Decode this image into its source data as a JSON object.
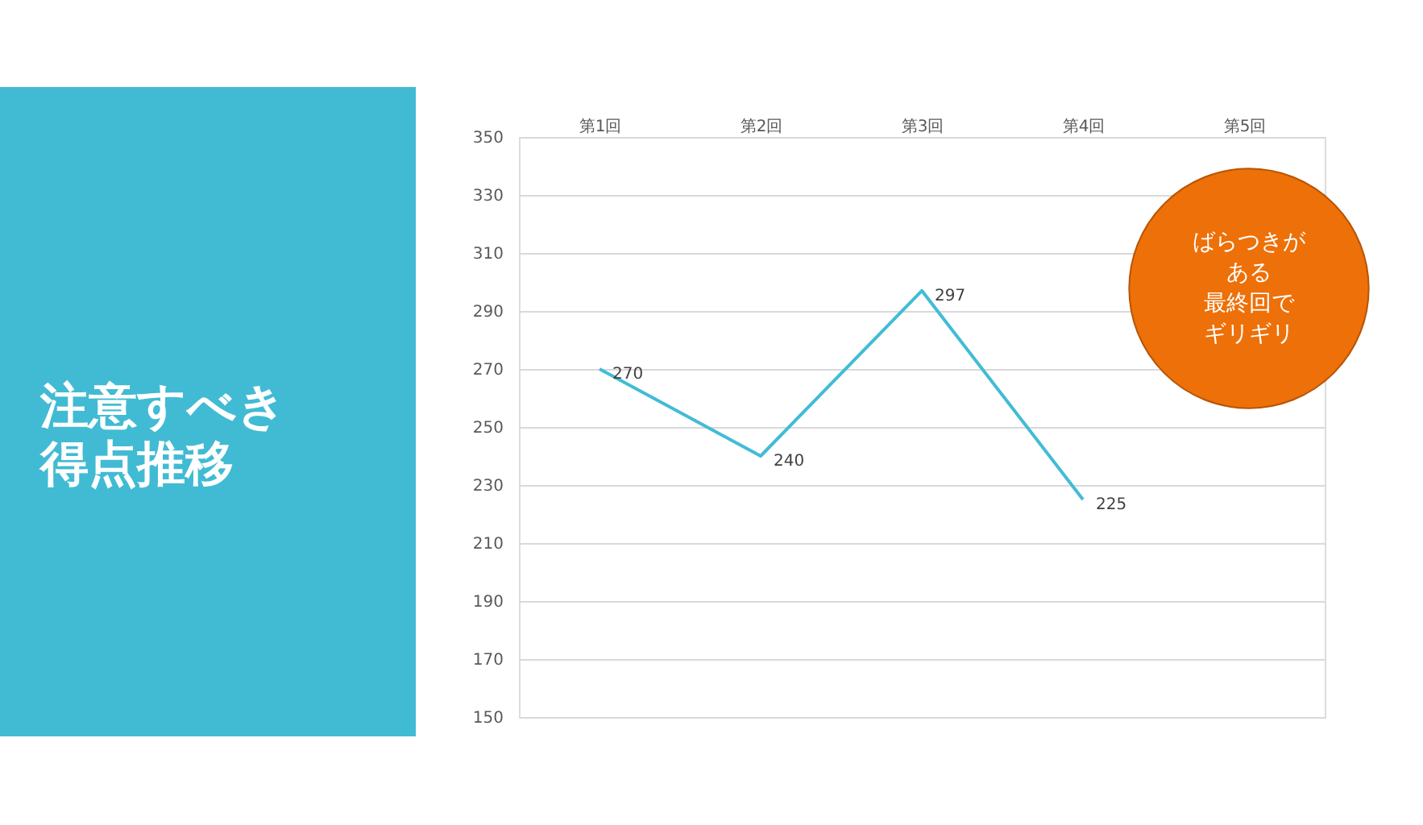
{
  "chart_data": {
    "type": "line",
    "title": "注意すべき得点推移",
    "categories": [
      "第1回",
      "第2回",
      "第3回",
      "第4回",
      "第5回"
    ],
    "series": [
      {
        "color": "#41bcd6",
        "values": [
          270,
          240,
          297,
          225,
          null
        ]
      }
    ],
    "ylim": [
      150,
      350
    ],
    "yticks": [
      150,
      170,
      190,
      210,
      230,
      250,
      270,
      290,
      310,
      330,
      350
    ],
    "grid": "y",
    "data_labels": true,
    "marker": "none",
    "line_style": "solid",
    "annotations": [
      "ばらつきが",
      "ある",
      "最終回で",
      "ギリギリ"
    ]
  }
}
